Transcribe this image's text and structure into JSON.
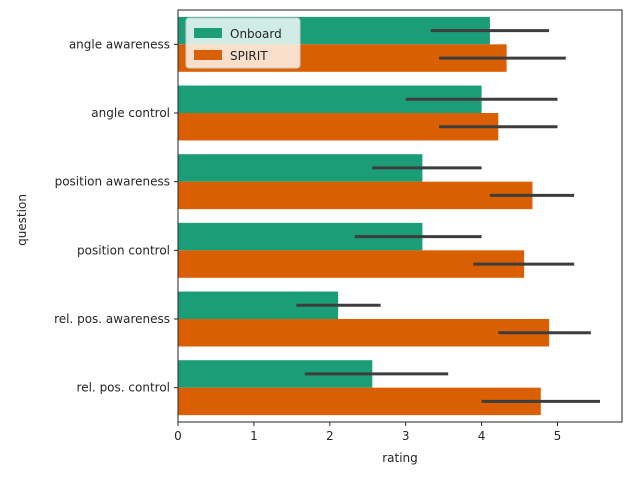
{
  "chart_data": {
    "type": "bar",
    "orientation": "horizontal",
    "title": "",
    "xlabel": "rating",
    "ylabel": "question",
    "xlim": [
      0,
      5.85
    ],
    "xticks": [
      0,
      1,
      2,
      3,
      4,
      5
    ],
    "categories": [
      "angle awareness",
      "angle control",
      "position awareness",
      "position control",
      "rel. pos. awareness",
      "rel. pos. control"
    ],
    "series": [
      {
        "name": "Onboard",
        "color": "#1b9e77",
        "values": [
          4.11,
          4.0,
          3.22,
          3.22,
          2.11,
          2.56
        ],
        "ci_low": [
          3.33,
          3.0,
          2.56,
          2.33,
          1.56,
          1.67
        ],
        "ci_high": [
          4.89,
          5.0,
          4.0,
          4.0,
          2.67,
          3.56
        ]
      },
      {
        "name": "SPIRIT",
        "color": "#d95f02",
        "values": [
          4.33,
          4.22,
          4.67,
          4.56,
          4.89,
          4.78
        ],
        "ci_low": [
          3.44,
          3.44,
          4.11,
          3.89,
          4.22,
          4.0
        ],
        "ci_high": [
          5.11,
          5.0,
          5.22,
          5.22,
          5.44,
          5.56
        ]
      }
    ],
    "legend_position": "top-left",
    "errorbar_color": "#3d3d3d",
    "grid": false
  }
}
